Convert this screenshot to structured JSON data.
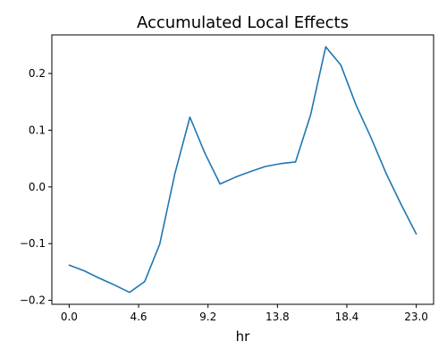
{
  "chart_data": {
    "type": "line",
    "title": "Accumulated Local Effects",
    "xlabel": "hr",
    "ylabel": "",
    "xlim": [
      -1.15,
      24.15
    ],
    "ylim": [
      -0.207,
      0.268
    ],
    "xticks": [
      0.0,
      4.6,
      9.2,
      13.8,
      18.4,
      23.0
    ],
    "xtick_labels": [
      "0.0",
      "4.6",
      "9.2",
      "13.8",
      "18.4",
      "23.0"
    ],
    "yticks": [
      -0.2,
      -0.1,
      0.0,
      0.1,
      0.2
    ],
    "ytick_labels": [
      "−0.2",
      "−0.1",
      "0.0",
      "0.1",
      "0.2"
    ],
    "grid": false,
    "series": [
      {
        "color": "#1f77b4",
        "x": [
          0,
          1,
          2,
          3,
          4,
          5,
          6,
          7,
          8,
          9,
          10,
          11,
          12,
          13,
          14,
          15,
          16,
          17,
          18,
          19,
          20,
          21,
          22,
          23
        ],
        "y": [
          -0.138,
          -0.148,
          -0.161,
          -0.173,
          -0.186,
          -0.167,
          -0.101,
          0.023,
          0.123,
          0.059,
          0.005,
          0.017,
          0.027,
          0.036,
          0.041,
          0.044,
          0.127,
          0.247,
          0.215,
          0.145,
          0.087,
          0.024,
          -0.031,
          -0.083
        ]
      }
    ]
  }
}
